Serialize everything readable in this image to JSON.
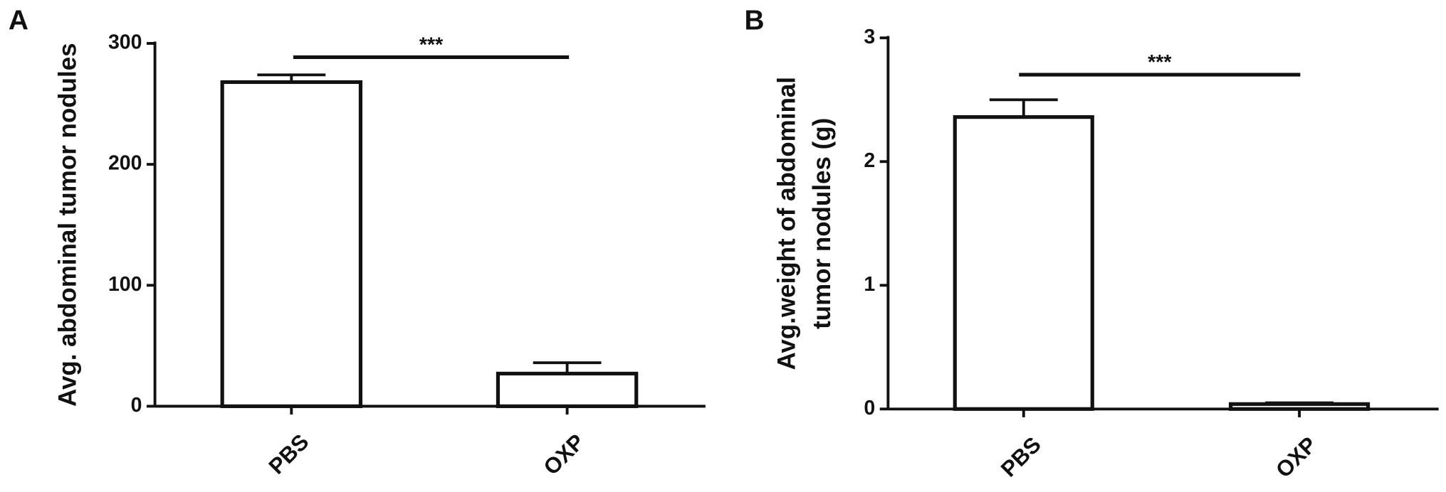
{
  "chart_data": [
    {
      "type": "bar",
      "panel": "A",
      "ylabel": [
        "Avg. abdominal tumor nodules"
      ],
      "categories": [
        "PBS",
        "OXP"
      ],
      "values": [
        268,
        27
      ],
      "errors": [
        6,
        9
      ],
      "color": "#ffffff",
      "ylim": [
        0,
        300
      ],
      "yticks": [
        0,
        100,
        200,
        300
      ],
      "annotation": "***"
    },
    {
      "type": "bar",
      "panel": "B",
      "ylabel": [
        "Avg.weight of abdominal",
        "tumor nodules (g)"
      ],
      "categories": [
        "PBS",
        "OXP"
      ],
      "values": [
        2.36,
        0.04
      ],
      "errors": [
        0.14,
        0.01
      ],
      "color": "#ffffff",
      "ylim": [
        0,
        3
      ],
      "yticks": [
        0,
        1,
        2,
        3
      ],
      "annotation": "***"
    }
  ]
}
